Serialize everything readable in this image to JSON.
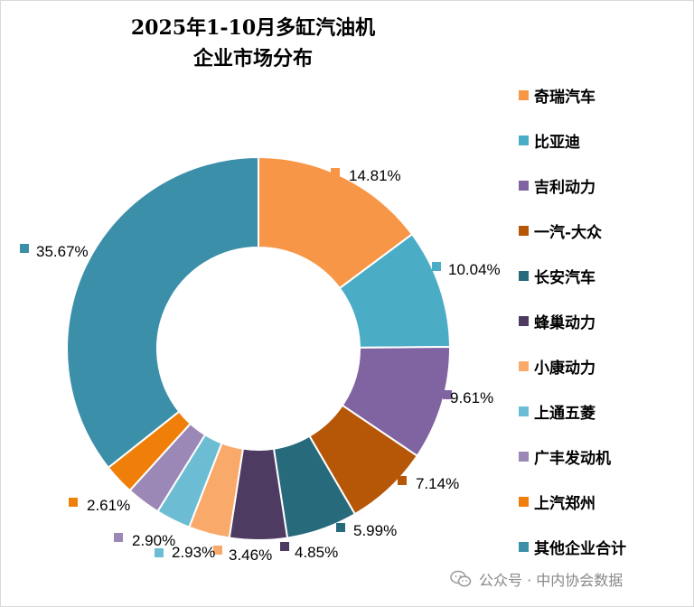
{
  "chart_data": {
    "type": "pie",
    "variant": "doughnut",
    "title_lines": [
      "2025年1-10月多缸汽油机",
      "企业市场分布"
    ],
    "slices": [
      {
        "label": "奇瑞汽车",
        "value": 14.81,
        "display": "14.81%",
        "color": "#F79646"
      },
      {
        "label": "比亚迪",
        "value": 10.04,
        "display": "10.04%",
        "color": "#4BACC6"
      },
      {
        "label": "吉利动力",
        "value": 9.61,
        "display": "9.61%",
        "color": "#8064A2"
      },
      {
        "label": "一汽-大众",
        "value": 7.14,
        "display": "7.14%",
        "color": "#B65708"
      },
      {
        "label": "长安汽车",
        "value": 5.99,
        "display": "5.99%",
        "color": "#276A7C"
      },
      {
        "label": "蜂巢动力",
        "value": 4.85,
        "display": "4.85%",
        "color": "#4D3B62"
      },
      {
        "label": "小康动力",
        "value": 3.46,
        "display": "3.46%",
        "color": "#F9AA6B"
      },
      {
        "label": "上通五菱",
        "value": 2.93,
        "display": "2.93%",
        "color": "#6CBDD3"
      },
      {
        "label": "广丰发动机",
        "value": 2.9,
        "display": "2.90%",
        "color": "#9C88B7"
      },
      {
        "label": "上汽郑州",
        "value": 2.61,
        "display": "2.61%",
        "color": "#F07F09"
      },
      {
        "label": "其他企业合计",
        "value": 35.67,
        "display": "35.67%",
        "color": "#3B8FA8"
      }
    ],
    "legend_position": "right"
  },
  "watermark": {
    "text": "公众号 · 中内协会数据",
    "icon": "wechat-icon"
  }
}
